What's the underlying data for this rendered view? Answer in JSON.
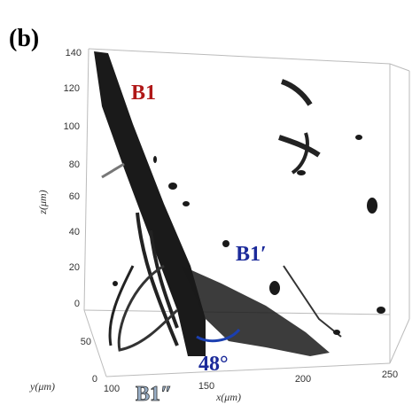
{
  "panel_label": "(b)",
  "labels": {
    "b1": "B1",
    "b1_prime": "B1′",
    "b1_double_prime": "B1″",
    "angle": "48°"
  },
  "axes": {
    "z": {
      "label": "z(μm)",
      "ticks": [
        "0",
        "20",
        "40",
        "60",
        "80",
        "100",
        "120",
        "140"
      ]
    },
    "y": {
      "label": "y(μm)",
      "ticks": [
        "0",
        "50"
      ]
    },
    "x": {
      "label": "x(μm)",
      "ticks": [
        "100",
        "150",
        "200",
        "250"
      ]
    }
  }
}
